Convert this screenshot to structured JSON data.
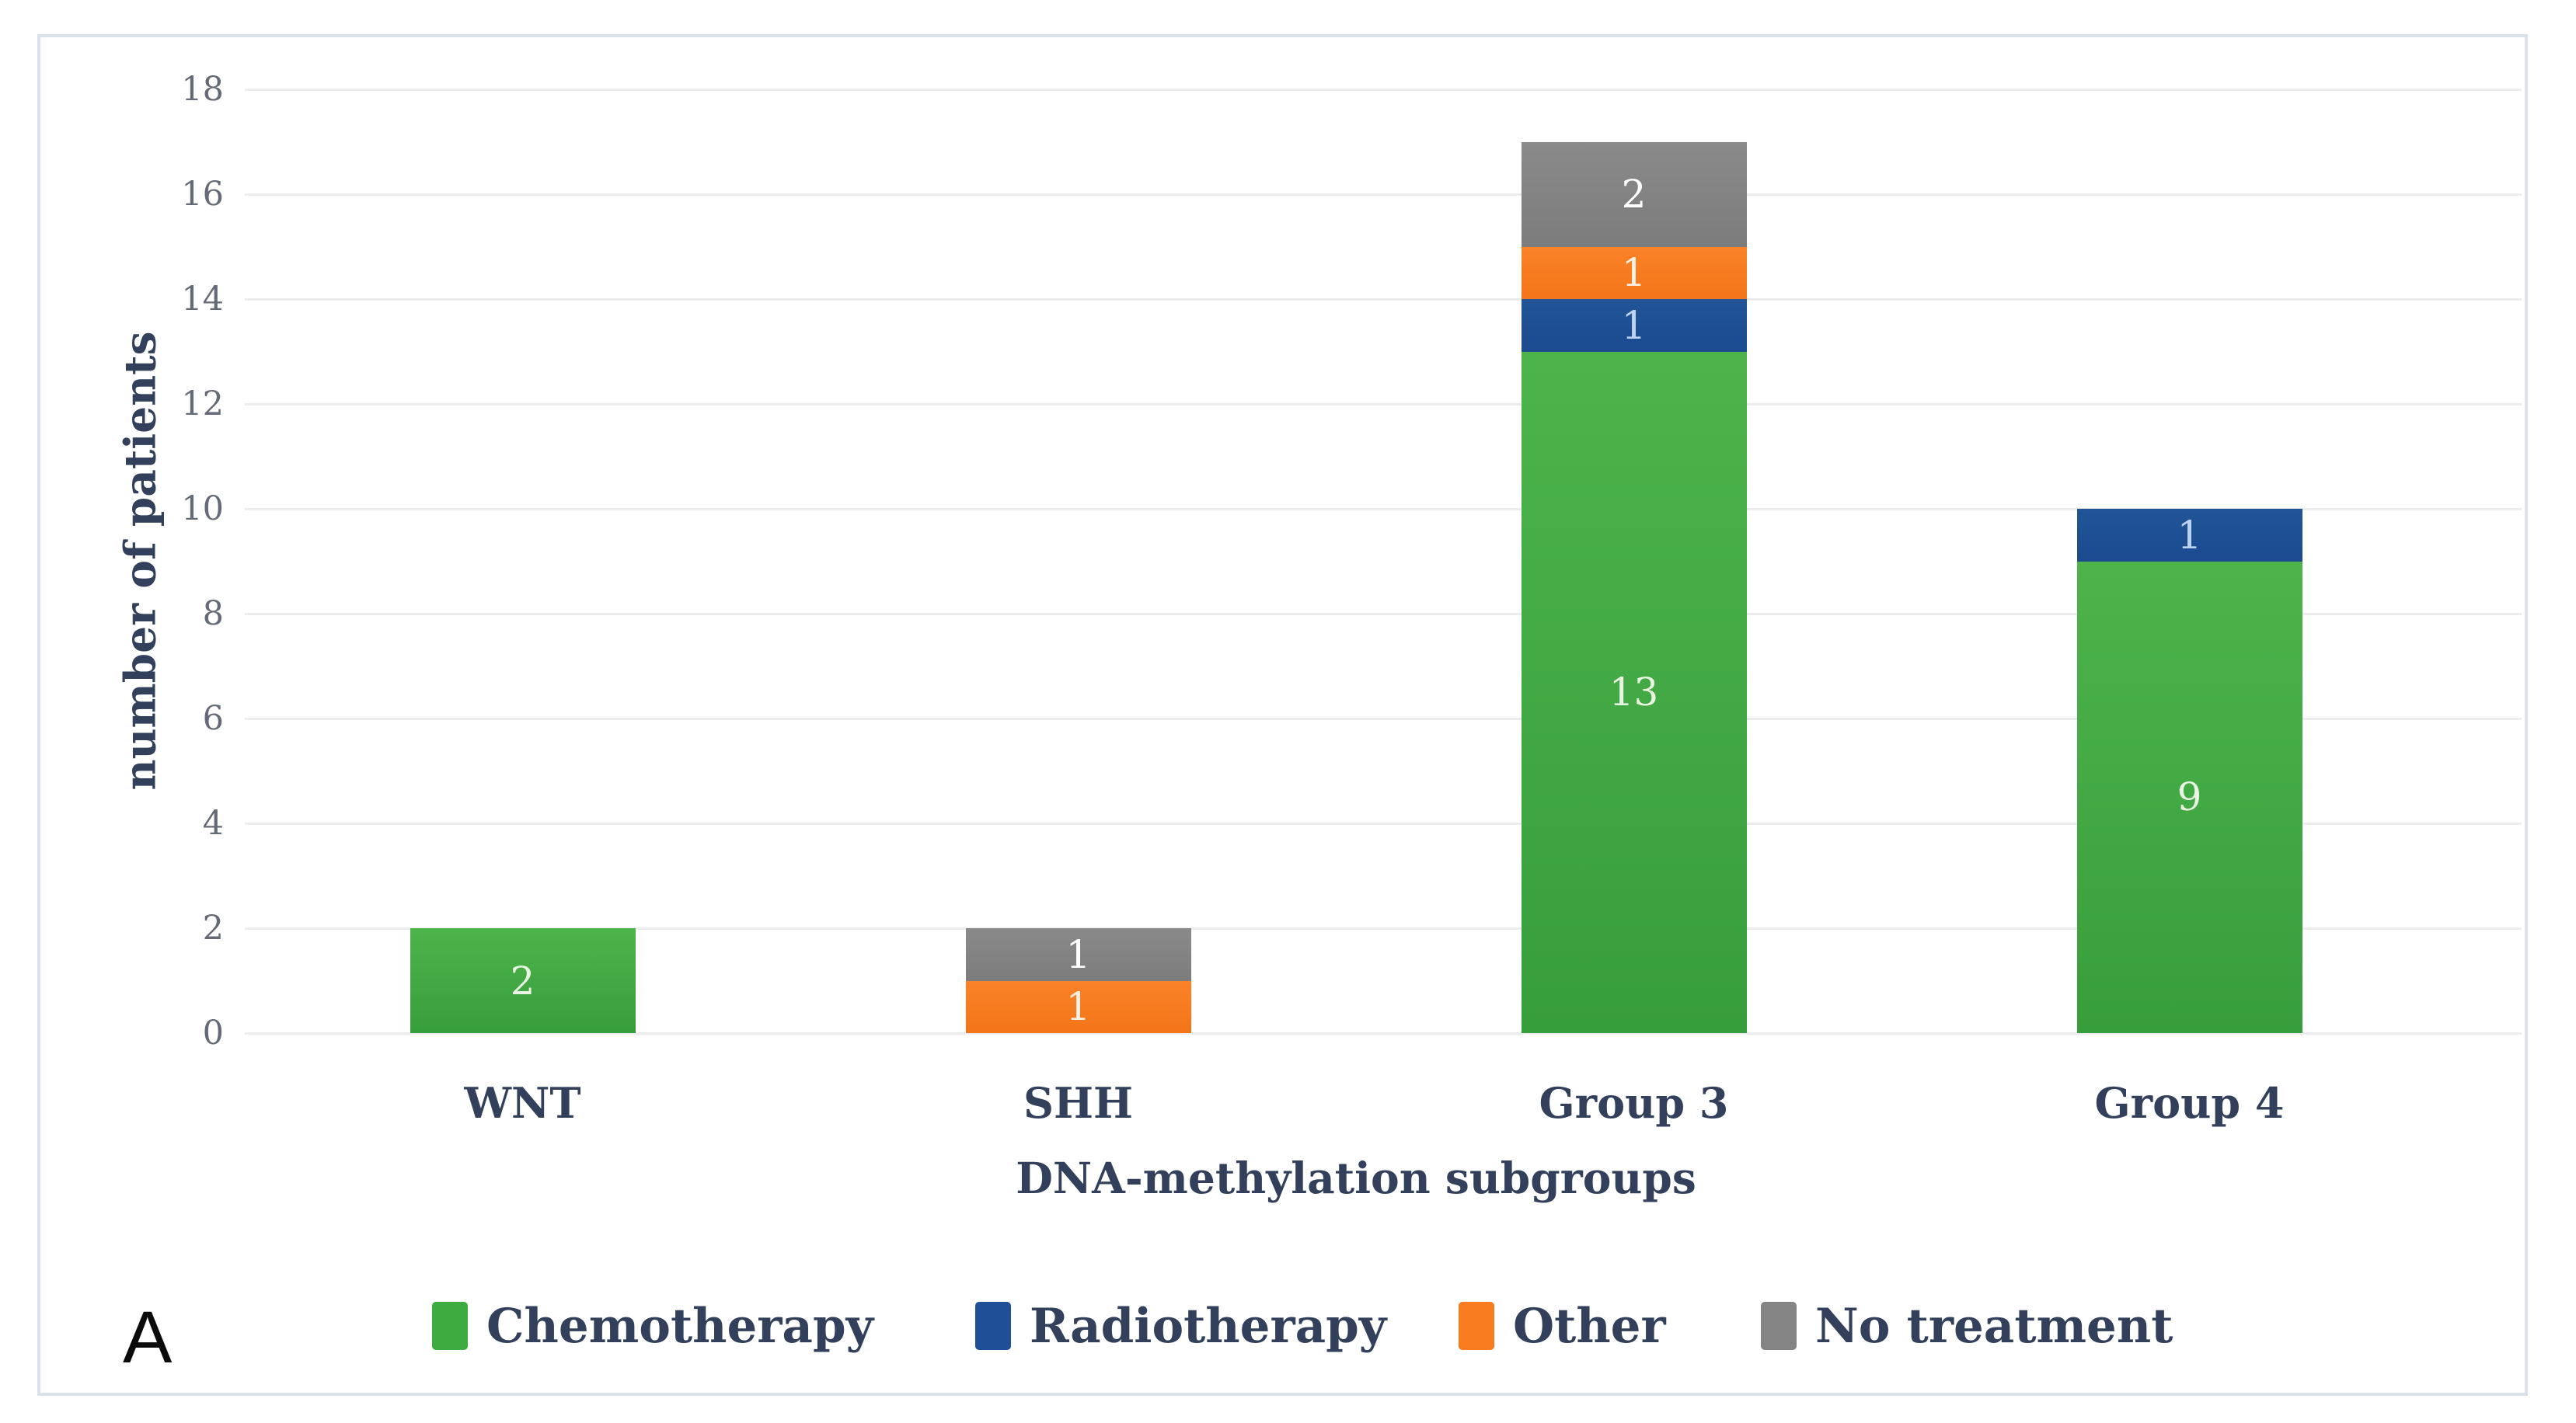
{
  "panel_label": "A",
  "colors": {
    "background": "#FFFFFF",
    "frame_border": "#D9E1EB",
    "gridline": "#ECECEE",
    "tick_label": "#646B76",
    "axis_text": "#32405C",
    "panel_label": "#0B0B0B"
  },
  "chart_data": {
    "type": "bar",
    "stacked": true,
    "title": "",
    "xlabel": "DNA-methylation subgroups",
    "ylabel": "number of patients",
    "categories": [
      "WNT",
      "SHH",
      "Group 3",
      "Group 4"
    ],
    "series": [
      {
        "name": "Chemotherapy",
        "color": "#3EAB41",
        "gradient_top": "#4DB44B",
        "gradient_bottom": "#379E3C",
        "label_color": "#E9F5E2",
        "values": [
          2,
          0,
          13,
          9
        ]
      },
      {
        "name": "Radiotherapy",
        "color": "#1E4F97",
        "gradient_top": "#215598",
        "gradient_bottom": "#1B4A8F",
        "label_color": "#BCD4F0",
        "values": [
          0,
          0,
          1,
          1
        ]
      },
      {
        "name": "Other",
        "color": "#F97B20",
        "gradient_top": "#FA8228",
        "gradient_bottom": "#F47518",
        "label_color": "#FDEFE3",
        "values": [
          0,
          1,
          1,
          0
        ]
      },
      {
        "name": "No treatment",
        "color": "#848484",
        "gradient_top": "#8A8A8A",
        "gradient_bottom": "#7C7C7C",
        "label_color": "#FFFFFF",
        "values": [
          0,
          1,
          2,
          0
        ]
      }
    ],
    "ylim": [
      0,
      18
    ],
    "yticks": [
      0,
      2,
      4,
      6,
      8,
      10,
      12,
      14,
      16,
      18
    ],
    "grid": true,
    "legend_position": "bottom",
    "totals": [
      2,
      2,
      17,
      10
    ]
  }
}
